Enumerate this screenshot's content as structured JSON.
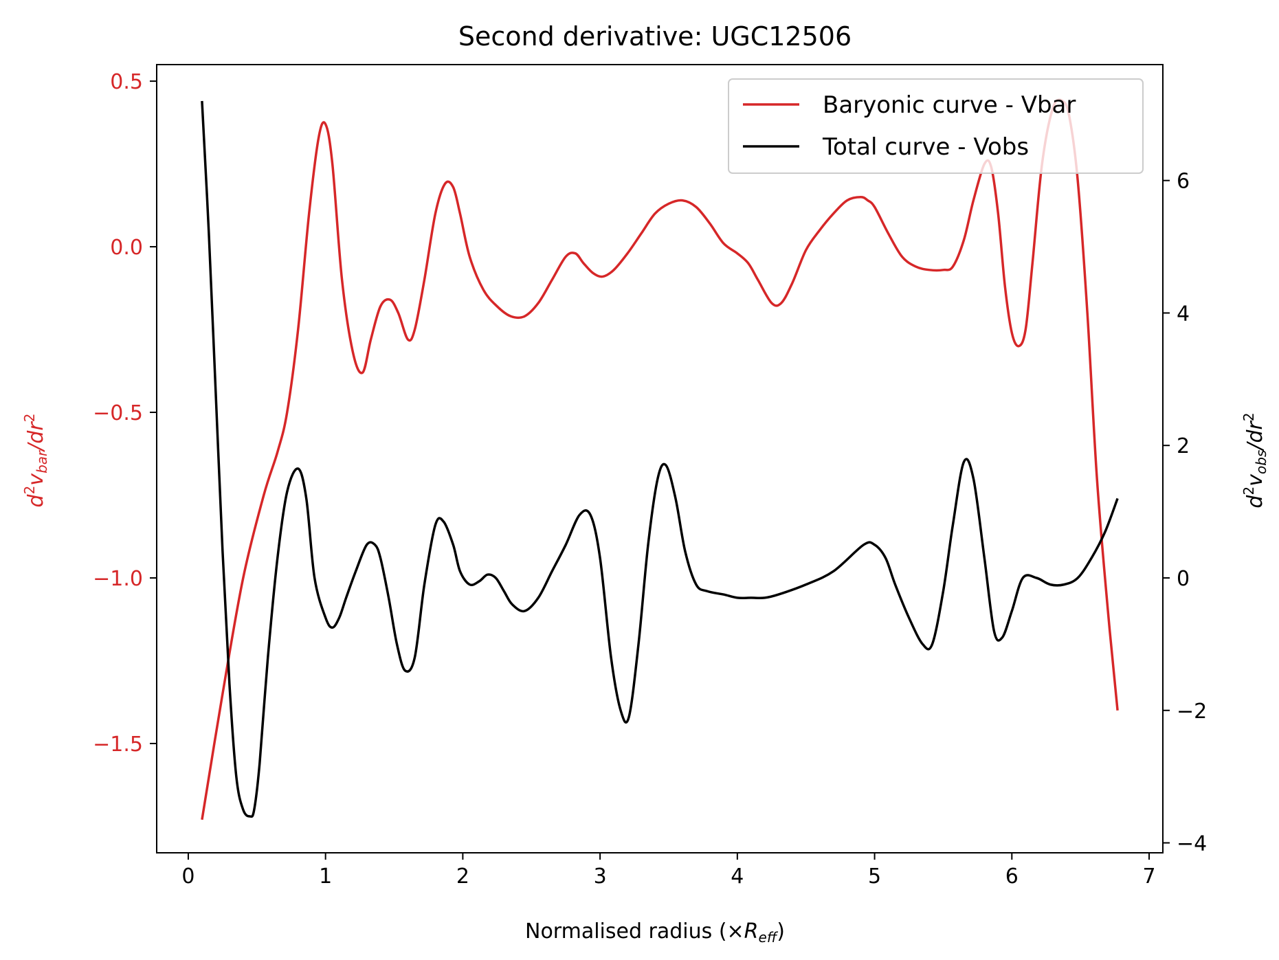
{
  "chart_data": {
    "type": "line",
    "title": "Second derivative: UGC12506",
    "xlabel": {
      "prefix": "Normalised radius (×",
      "var": "R",
      "sub": "eff",
      "suffix": ")"
    },
    "ylabel_left": {
      "pre": "d",
      "sup1": "2",
      "var": "v",
      "sub": "bar",
      "mid": "/dr",
      "sup2": "2"
    },
    "ylabel_right": {
      "pre": "d",
      "sup1": "2",
      "var": "v",
      "sub": "obs",
      "mid": "/dr",
      "sup2": "2"
    },
    "xlim": [
      -0.23,
      7.1
    ],
    "ylim_left": [
      -1.83,
      0.55
    ],
    "ylim_right": [
      -4.15,
      7.75
    ],
    "x_ticks": [
      0,
      1,
      2,
      3,
      4,
      5,
      6,
      7
    ],
    "x_tick_labels": [
      "0",
      "1",
      "2",
      "3",
      "4",
      "5",
      "6",
      "7"
    ],
    "y_left_ticks": [
      0.5,
      0.0,
      -0.5,
      -1.0,
      -1.5
    ],
    "y_left_tick_labels": [
      "0.5",
      "0.0",
      "−0.5",
      "−1.0",
      "−1.5"
    ],
    "y_right_ticks": [
      6,
      4,
      2,
      0,
      -2,
      -4
    ],
    "y_right_tick_labels": [
      "6",
      "4",
      "2",
      "0",
      "−2",
      "−4"
    ],
    "left_axis_color": "#d62728",
    "right_axis_color": "#000000",
    "legend_position": "upper-right",
    "grid": false,
    "series": [
      {
        "name": "Baryonic curve - Vbar",
        "axis": "left",
        "color": "#d62728",
        "x": [
          0.1,
          0.25,
          0.4,
          0.55,
          0.65,
          0.72,
          0.8,
          0.88,
          0.95,
          1.0,
          1.05,
          1.12,
          1.2,
          1.27,
          1.33,
          1.4,
          1.47,
          1.53,
          1.6,
          1.65,
          1.72,
          1.8,
          1.87,
          1.93,
          1.98,
          2.05,
          2.15,
          2.25,
          2.35,
          2.45,
          2.55,
          2.65,
          2.75,
          2.82,
          2.88,
          2.95,
          3.02,
          3.1,
          3.2,
          3.3,
          3.4,
          3.5,
          3.6,
          3.7,
          3.8,
          3.9,
          4.0,
          4.08,
          4.15,
          4.25,
          4.32,
          4.4,
          4.5,
          4.6,
          4.7,
          4.8,
          4.9,
          4.95,
          5.0,
          5.1,
          5.2,
          5.3,
          5.4,
          5.5,
          5.57,
          5.65,
          5.72,
          5.8,
          5.85,
          5.9,
          5.95,
          6.0,
          6.05,
          6.1,
          6.15,
          6.22,
          6.3,
          6.37,
          6.42,
          6.48,
          6.55,
          6.62,
          6.7,
          6.77
        ],
        "values": [
          -1.73,
          -1.35,
          -1.0,
          -0.75,
          -0.62,
          -0.5,
          -0.25,
          0.1,
          0.33,
          0.37,
          0.25,
          -0.1,
          -0.32,
          -0.38,
          -0.28,
          -0.18,
          -0.16,
          -0.2,
          -0.28,
          -0.25,
          -0.1,
          0.1,
          0.19,
          0.18,
          0.1,
          -0.03,
          -0.13,
          -0.18,
          -0.21,
          -0.21,
          -0.17,
          -0.1,
          -0.03,
          -0.02,
          -0.05,
          -0.08,
          -0.09,
          -0.07,
          -0.02,
          0.04,
          0.1,
          0.13,
          0.14,
          0.12,
          0.07,
          0.01,
          -0.02,
          -0.05,
          -0.1,
          -0.17,
          -0.17,
          -0.11,
          -0.01,
          0.05,
          0.1,
          0.14,
          0.15,
          0.14,
          0.12,
          0.04,
          -0.03,
          -0.06,
          -0.07,
          -0.07,
          -0.06,
          0.02,
          0.14,
          0.25,
          0.24,
          0.1,
          -0.12,
          -0.26,
          -0.3,
          -0.25,
          -0.05,
          0.25,
          0.42,
          0.44,
          0.39,
          0.2,
          -0.2,
          -0.7,
          -1.1,
          -1.4
        ]
      },
      {
        "name": "Total curve - Vobs",
        "axis": "right",
        "color": "#000000",
        "x": [
          0.1,
          0.15,
          0.2,
          0.25,
          0.3,
          0.35,
          0.4,
          0.45,
          0.48,
          0.52,
          0.58,
          0.65,
          0.72,
          0.8,
          0.86,
          0.92,
          1.0,
          1.05,
          1.1,
          1.15,
          1.22,
          1.3,
          1.36,
          1.4,
          1.46,
          1.52,
          1.58,
          1.65,
          1.72,
          1.8,
          1.86,
          1.93,
          1.98,
          2.05,
          2.12,
          2.18,
          2.24,
          2.3,
          2.36,
          2.45,
          2.55,
          2.65,
          2.75,
          2.85,
          2.93,
          3.0,
          3.08,
          3.15,
          3.21,
          3.28,
          3.35,
          3.42,
          3.48,
          3.55,
          3.62,
          3.7,
          3.78,
          3.9,
          4.0,
          4.1,
          4.2,
          4.3,
          4.5,
          4.7,
          4.92,
          5.0,
          5.08,
          5.15,
          5.25,
          5.35,
          5.42,
          5.5,
          5.57,
          5.65,
          5.72,
          5.8,
          5.87,
          5.93,
          6.0,
          6.08,
          6.18,
          6.28,
          6.38,
          6.48,
          6.58,
          6.68,
          6.77
        ],
        "values": [
          7.2,
          5.2,
          2.8,
          0.4,
          -1.6,
          -3.0,
          -3.5,
          -3.6,
          -3.5,
          -2.8,
          -1.2,
          0.3,
          1.3,
          1.65,
          1.2,
          0.0,
          -0.6,
          -0.75,
          -0.6,
          -0.3,
          0.1,
          0.5,
          0.5,
          0.3,
          -0.3,
          -1.0,
          -1.4,
          -1.2,
          -0.1,
          0.8,
          0.85,
          0.5,
          0.1,
          -0.1,
          -0.05,
          0.05,
          0.0,
          -0.2,
          -0.4,
          -0.5,
          -0.3,
          0.1,
          0.5,
          0.95,
          0.95,
          0.3,
          -1.2,
          -2.0,
          -2.1,
          -1.0,
          0.5,
          1.5,
          1.7,
          1.2,
          0.4,
          -0.1,
          -0.2,
          -0.25,
          -0.3,
          -0.3,
          -0.3,
          -0.25,
          -0.1,
          0.1,
          0.5,
          0.5,
          0.3,
          -0.1,
          -0.6,
          -1.0,
          -1.0,
          -0.2,
          0.8,
          1.75,
          1.5,
          0.3,
          -0.8,
          -0.9,
          -0.5,
          0.0,
          0.0,
          -0.1,
          -0.1,
          0.0,
          0.3,
          0.7,
          1.2
        ]
      }
    ]
  }
}
